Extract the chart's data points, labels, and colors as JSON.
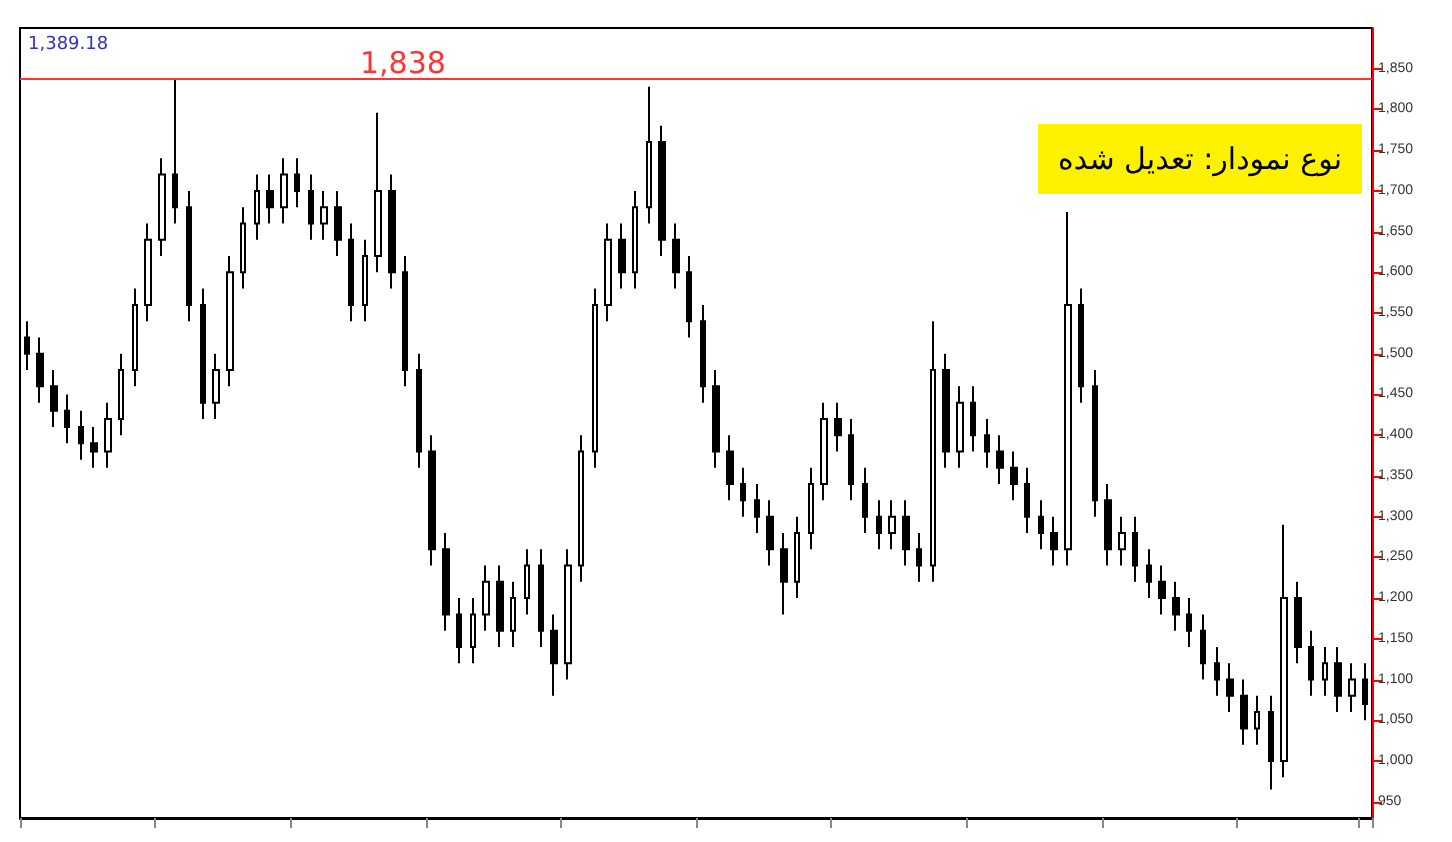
{
  "chart_data": {
    "type": "candlestick",
    "categories": [
      null,
      null,
      null,
      null,
      null,
      null,
      null,
      null,
      null,
      null,
      null,
      null,
      null,
      null,
      null,
      null,
      null,
      null,
      null,
      null,
      null,
      null,
      null,
      null,
      null,
      null,
      null,
      null,
      null,
      null,
      null,
      null,
      null,
      null,
      null,
      null,
      null,
      null,
      null,
      null,
      null,
      null,
      null,
      null,
      null,
      null,
      null,
      null,
      null,
      null,
      null,
      null,
      null,
      null,
      null,
      null,
      null,
      null,
      null,
      null,
      null,
      null,
      null,
      null,
      null,
      null,
      null,
      null,
      null,
      null,
      null,
      null,
      null,
      null,
      null,
      null,
      null,
      null,
      null,
      null,
      null,
      null,
      null,
      null,
      null,
      null,
      null,
      null,
      null,
      null,
      null,
      null,
      null,
      null,
      null,
      null,
      null,
      null,
      null,
      null
    ],
    "series": [
      {
        "color": "#000000",
        "ohlc": [
          [
            1520,
            1540,
            1480,
            1500
          ],
          [
            1500,
            1520,
            1440,
            1460
          ],
          [
            1460,
            1480,
            1410,
            1430
          ],
          [
            1430,
            1450,
            1390,
            1410
          ],
          [
            1410,
            1430,
            1370,
            1390
          ],
          [
            1390,
            1410,
            1360,
            1380
          ],
          [
            1380,
            1440,
            1360,
            1420
          ],
          [
            1420,
            1500,
            1400,
            1480
          ],
          [
            1480,
            1580,
            1460,
            1560
          ],
          [
            1560,
            1660,
            1540,
            1640
          ],
          [
            1640,
            1740,
            1620,
            1720
          ],
          [
            1720,
            1838,
            1660,
            1680
          ],
          [
            1680,
            1700,
            1540,
            1560
          ],
          [
            1560,
            1580,
            1420,
            1440
          ],
          [
            1440,
            1500,
            1420,
            1480
          ],
          [
            1480,
            1620,
            1460,
            1600
          ],
          [
            1600,
            1680,
            1580,
            1660
          ],
          [
            1660,
            1720,
            1640,
            1700
          ],
          [
            1700,
            1720,
            1660,
            1680
          ],
          [
            1680,
            1740,
            1660,
            1720
          ],
          [
            1720,
            1740,
            1680,
            1700
          ],
          [
            1700,
            1720,
            1640,
            1660
          ],
          [
            1660,
            1700,
            1640,
            1680
          ],
          [
            1680,
            1700,
            1620,
            1640
          ],
          [
            1640,
            1660,
            1540,
            1560
          ],
          [
            1560,
            1640,
            1540,
            1620
          ],
          [
            1620,
            1796,
            1600,
            1700
          ],
          [
            1700,
            1720,
            1580,
            1600
          ],
          [
            1600,
            1620,
            1460,
            1480
          ],
          [
            1480,
            1500,
            1360,
            1380
          ],
          [
            1380,
            1400,
            1240,
            1260
          ],
          [
            1260,
            1280,
            1160,
            1180
          ],
          [
            1180,
            1200,
            1120,
            1140
          ],
          [
            1140,
            1200,
            1120,
            1180
          ],
          [
            1180,
            1240,
            1160,
            1220
          ],
          [
            1220,
            1240,
            1140,
            1160
          ],
          [
            1160,
            1220,
            1140,
            1200
          ],
          [
            1200,
            1260,
            1180,
            1240
          ],
          [
            1240,
            1260,
            1140,
            1160
          ],
          [
            1160,
            1180,
            1080,
            1120
          ],
          [
            1120,
            1260,
            1100,
            1240
          ],
          [
            1240,
            1400,
            1220,
            1380
          ],
          [
            1380,
            1580,
            1360,
            1560
          ],
          [
            1560,
            1660,
            1540,
            1640
          ],
          [
            1640,
            1660,
            1580,
            1600
          ],
          [
            1600,
            1700,
            1580,
            1680
          ],
          [
            1680,
            1828,
            1660,
            1760
          ],
          [
            1760,
            1780,
            1620,
            1640
          ],
          [
            1640,
            1660,
            1580,
            1600
          ],
          [
            1600,
            1620,
            1520,
            1540
          ],
          [
            1540,
            1560,
            1440,
            1460
          ],
          [
            1460,
            1480,
            1360,
            1380
          ],
          [
            1380,
            1400,
            1320,
            1340
          ],
          [
            1340,
            1360,
            1300,
            1320
          ],
          [
            1320,
            1340,
            1280,
            1300
          ],
          [
            1300,
            1320,
            1240,
            1260
          ],
          [
            1260,
            1280,
            1180,
            1220
          ],
          [
            1220,
            1300,
            1200,
            1280
          ],
          [
            1280,
            1360,
            1260,
            1340
          ],
          [
            1340,
            1440,
            1320,
            1420
          ],
          [
            1420,
            1440,
            1380,
            1400
          ],
          [
            1400,
            1420,
            1320,
            1340
          ],
          [
            1340,
            1360,
            1280,
            1300
          ],
          [
            1300,
            1320,
            1260,
            1280
          ],
          [
            1280,
            1320,
            1260,
            1300
          ],
          [
            1300,
            1320,
            1240,
            1260
          ],
          [
            1260,
            1280,
            1220,
            1240
          ],
          [
            1240,
            1540,
            1220,
            1480
          ],
          [
            1480,
            1500,
            1360,
            1380
          ],
          [
            1380,
            1460,
            1360,
            1440
          ],
          [
            1440,
            1460,
            1380,
            1400
          ],
          [
            1400,
            1420,
            1360,
            1380
          ],
          [
            1380,
            1400,
            1340,
            1360
          ],
          [
            1360,
            1380,
            1320,
            1340
          ],
          [
            1340,
            1360,
            1280,
            1300
          ],
          [
            1300,
            1320,
            1260,
            1280
          ],
          [
            1280,
            1300,
            1240,
            1260
          ],
          [
            1260,
            1674,
            1240,
            1560
          ],
          [
            1560,
            1580,
            1440,
            1460
          ],
          [
            1460,
            1480,
            1300,
            1320
          ],
          [
            1320,
            1340,
            1240,
            1260
          ],
          [
            1260,
            1300,
            1240,
            1280
          ],
          [
            1280,
            1300,
            1220,
            1240
          ],
          [
            1240,
            1260,
            1200,
            1220
          ],
          [
            1220,
            1240,
            1180,
            1200
          ],
          [
            1200,
            1220,
            1160,
            1180
          ],
          [
            1180,
            1200,
            1140,
            1160
          ],
          [
            1160,
            1180,
            1100,
            1120
          ],
          [
            1120,
            1140,
            1080,
            1100
          ],
          [
            1100,
            1120,
            1060,
            1080
          ],
          [
            1080,
            1100,
            1020,
            1040
          ],
          [
            1040,
            1080,
            1020,
            1060
          ],
          [
            1060,
            1080,
            965,
            1000
          ],
          [
            1000,
            1290,
            980,
            1200
          ],
          [
            1200,
            1220,
            1120,
            1140
          ],
          [
            1140,
            1160,
            1080,
            1100
          ],
          [
            1100,
            1140,
            1080,
            1120
          ],
          [
            1120,
            1140,
            1060,
            1080
          ],
          [
            1080,
            1120,
            1060,
            1100
          ],
          [
            1100,
            1120,
            1050,
            1070
          ]
        ]
      }
    ],
    "ylim": [
      930,
      1900
    ],
    "yticks": [
      950,
      {
        "value": 1000,
        "label": "1,000"
      },
      {
        "value": 1050,
        "label": "1,050"
      },
      {
        "value": 1100,
        "label": "1,100"
      },
      {
        "value": 1150,
        "label": "1,150"
      },
      {
        "value": 1200,
        "label": "1,200"
      },
      {
        "value": 1250,
        "label": "1,250"
      },
      {
        "value": 1300,
        "label": "1,300"
      },
      {
        "value": 1350,
        "label": "1,350"
      },
      {
        "value": 1400,
        "label": "1,400"
      },
      {
        "value": 1450,
        "label": "1,450"
      },
      {
        "value": 1500,
        "label": "1,500"
      },
      {
        "value": 1550,
        "label": "1,550"
      },
      {
        "value": 1600,
        "label": "1,600"
      },
      {
        "value": 1650,
        "label": "1,650"
      },
      {
        "value": 1700,
        "label": "1,700"
      },
      {
        "value": 1750,
        "label": "1,750"
      },
      {
        "value": 1800,
        "label": "1,800"
      },
      {
        "value": 1850,
        "label": "1,850"
      }
    ],
    "tick_labels": "y",
    "grid": false,
    "ref_lines": [
      {
        "axis": "y",
        "value": 1838,
        "label": "1,838",
        "color": "#ff3333"
      }
    ],
    "annotations": [
      "1,389.18",
      "نوع نمودار: تعدیل شده"
    ]
  }
}
